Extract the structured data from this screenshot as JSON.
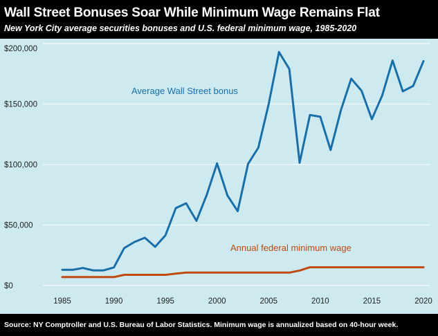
{
  "header": {
    "title": "Wall Street Bonuses Soar While Minimum Wage Remains Flat",
    "subtitle": "New York City average securities bonuses and U.S. federal minimum wage, 1985-2020"
  },
  "footer": {
    "source": "Source: NY Comptroller and U.S. Bureau of Labor Statistics. Minimum wage is annualized based on 40-hour week."
  },
  "colors": {
    "bonus": "#1a6ea8",
    "wage": "#c0490f",
    "plot_background": "#cdeaf0",
    "grid": "#ffffff"
  },
  "chart_data": {
    "type": "line",
    "title": "Wall Street Bonuses Soar While Minimum Wage Remains Flat",
    "subtitle": "New York City average securities bonuses and U.S. federal minimum wage, 1985-2020",
    "xlabel": "",
    "ylabel": "",
    "xlim": [
      1985,
      2020
    ],
    "ylim": [
      0,
      200000
    ],
    "x_ticks": [
      "1985",
      "1990",
      "1995",
      "2000",
      "2005",
      "2010",
      "2015",
      "2020"
    ],
    "y_ticks": [
      "$200,000",
      "$150,000",
      "$100,000",
      "$50,000",
      "$0"
    ],
    "grid": "horizontal",
    "x": [
      1985,
      1986,
      1987,
      1988,
      1989,
      1990,
      1991,
      1992,
      1993,
      1994,
      1995,
      1996,
      1997,
      1998,
      1999,
      2000,
      2001,
      2002,
      2003,
      2004,
      2005,
      2006,
      2007,
      2008,
      2009,
      2010,
      2011,
      2012,
      2013,
      2014,
      2015,
      2016,
      2017,
      2018,
      2019,
      2020
    ],
    "series": [
      {
        "name": "Average Wall Street bonus",
        "values": [
          13000,
          13000,
          14500,
          12500,
          12500,
          15000,
          31000,
          36000,
          39500,
          32000,
          41500,
          64000,
          68000,
          53500,
          75000,
          101000,
          74500,
          61500,
          100500,
          114000,
          150000,
          193000,
          179000,
          101500,
          141000,
          139500,
          112000,
          145000,
          171000,
          161000,
          137500,
          157000,
          186000,
          160500,
          165000,
          185500
        ]
      },
      {
        "name": "Annual federal minimum wage",
        "values": [
          6968,
          6968,
          6968,
          6968,
          6968,
          6968,
          8840,
          8840,
          8840,
          8840,
          8840,
          9880,
          10712,
          10712,
          10712,
          10712,
          10712,
          10712,
          10712,
          10712,
          10712,
          10712,
          10712,
          12376,
          15080,
          15080,
          15080,
          15080,
          15080,
          15080,
          15080,
          15080,
          15080,
          15080,
          15080,
          15080
        ]
      }
    ]
  }
}
